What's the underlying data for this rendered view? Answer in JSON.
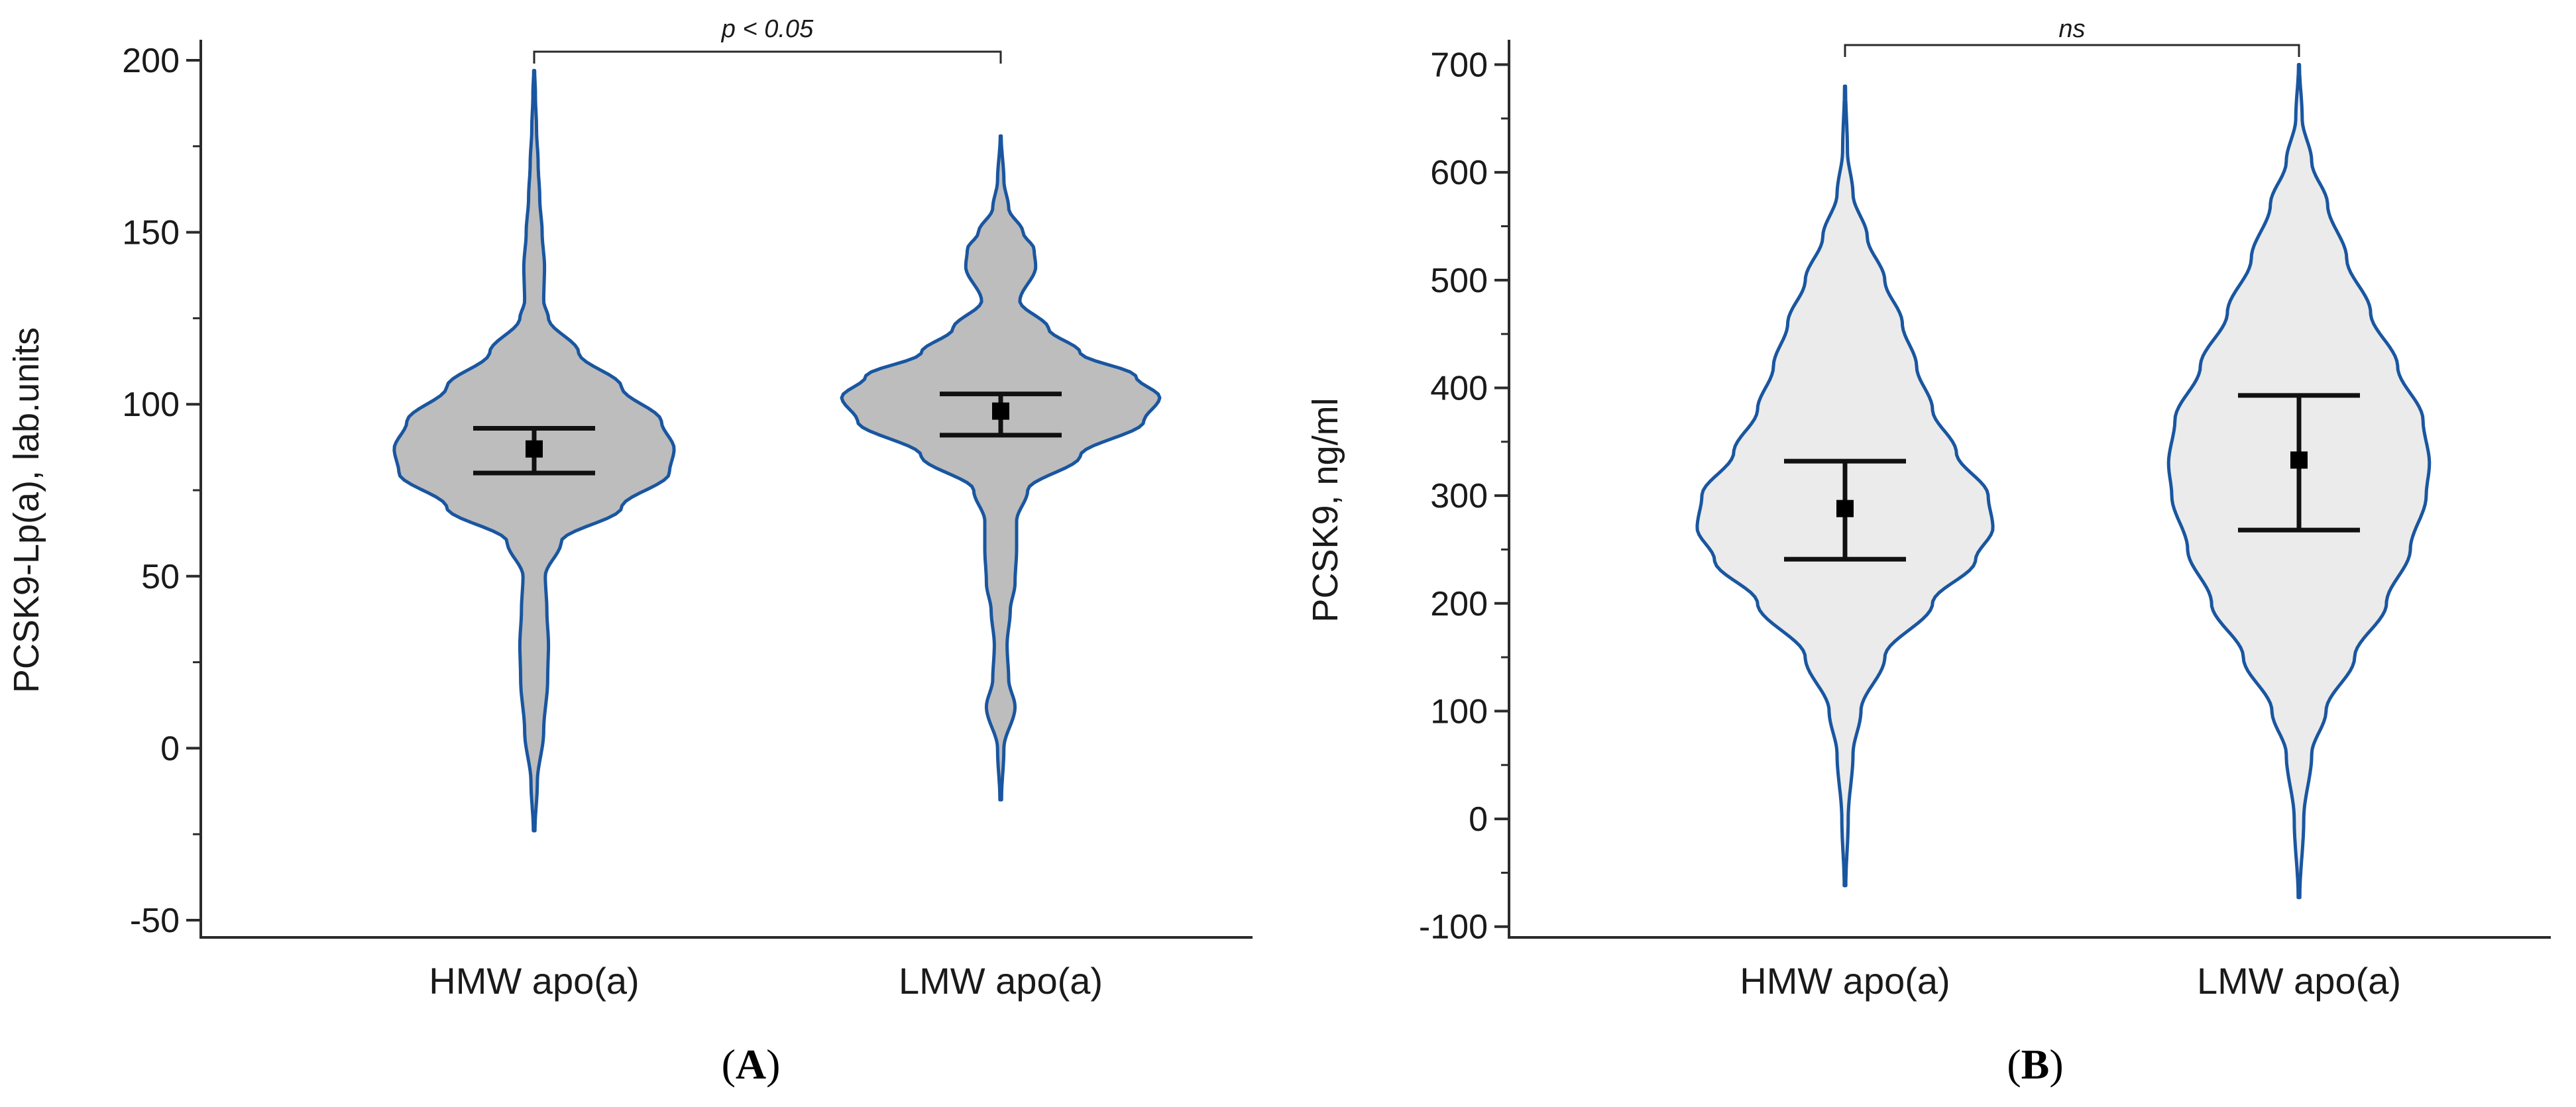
{
  "chart_data": [
    {
      "type": "violin",
      "panel_label": "A",
      "ylabel": "PCSK9-Lp(a), lab.units",
      "ylim": [
        -55,
        205
      ],
      "yticks": [
        -50,
        0,
        50,
        100,
        150,
        200
      ],
      "tick_labels": [
        "-50",
        "0",
        "50",
        "100",
        "150",
        "200"
      ],
      "violin_fill": "#bdbdbd",
      "violin_stroke": "#1a56a0",
      "significance": {
        "text": "p < 0.05",
        "between": [
          0,
          1
        ]
      },
      "series": [
        {
          "name": "HMW apo(a)",
          "mean": 87,
          "ci": [
            80,
            93
          ],
          "range": [
            -24,
            197
          ],
          "density_profile": [
            [
              -24,
              0.005
            ],
            [
              -10,
              0.02
            ],
            [
              5,
              0.06
            ],
            [
              20,
              0.085
            ],
            [
              30,
              0.09
            ],
            [
              40,
              0.08
            ],
            [
              50,
              0.07
            ],
            [
              60,
              0.17
            ],
            [
              70,
              0.55
            ],
            [
              80,
              0.85
            ],
            [
              87,
              0.88
            ],
            [
              95,
              0.8
            ],
            [
              105,
              0.55
            ],
            [
              115,
              0.28
            ],
            [
              125,
              0.09
            ],
            [
              130,
              0.06
            ],
            [
              140,
              0.065
            ],
            [
              150,
              0.05
            ],
            [
              160,
              0.035
            ],
            [
              170,
              0.025
            ],
            [
              180,
              0.015
            ],
            [
              190,
              0.008
            ],
            [
              197,
              0.003
            ]
          ]
        },
        {
          "name": "LMW apo(a)",
          "mean": 98,
          "ci": [
            91,
            103
          ],
          "range": [
            -15,
            178
          ],
          "density_profile": [
            [
              -15,
              0.005
            ],
            [
              0,
              0.02
            ],
            [
              12,
              0.09
            ],
            [
              20,
              0.05
            ],
            [
              30,
              0.04
            ],
            [
              40,
              0.06
            ],
            [
              48,
              0.09
            ],
            [
              58,
              0.1
            ],
            [
              66,
              0.1
            ],
            [
              75,
              0.17
            ],
            [
              85,
              0.5
            ],
            [
              95,
              0.9
            ],
            [
              102,
              1.0
            ],
            [
              108,
              0.85
            ],
            [
              115,
              0.5
            ],
            [
              122,
              0.3
            ],
            [
              130,
              0.12
            ],
            [
              140,
              0.22
            ],
            [
              145,
              0.21
            ],
            [
              150,
              0.14
            ],
            [
              157,
              0.05
            ],
            [
              165,
              0.02
            ],
            [
              178,
              0.003
            ]
          ]
        }
      ]
    },
    {
      "type": "violin",
      "panel_label": "B",
      "ylabel": "PCSK9, ng/ml",
      "ylim": [
        -110,
        720
      ],
      "yticks": [
        -100,
        0,
        100,
        200,
        300,
        400,
        500,
        600,
        700
      ],
      "tick_labels": [
        "-100",
        "0",
        "100",
        "200",
        "300",
        "400",
        "500",
        "600",
        "700"
      ],
      "violin_fill": "#ebebeb",
      "violin_stroke": "#1a56a0",
      "significance": {
        "text": "ns",
        "between": [
          0,
          1
        ]
      },
      "series": [
        {
          "name": "HMW apo(a)",
          "mean": 288,
          "ci": [
            241,
            332
          ],
          "range": [
            -62,
            680
          ],
          "density_profile": [
            [
              -62,
              0.005
            ],
            [
              0,
              0.02
            ],
            [
              60,
              0.05
            ],
            [
              100,
              0.1
            ],
            [
              150,
              0.25
            ],
            [
              200,
              0.55
            ],
            [
              240,
              0.82
            ],
            [
              270,
              0.93
            ],
            [
              300,
              0.9
            ],
            [
              340,
              0.7
            ],
            [
              380,
              0.55
            ],
            [
              420,
              0.45
            ],
            [
              460,
              0.36
            ],
            [
              500,
              0.25
            ],
            [
              540,
              0.14
            ],
            [
              580,
              0.05
            ],
            [
              620,
              0.015
            ],
            [
              680,
              0.003
            ]
          ]
        },
        {
          "name": "LMW apo(a)",
          "mean": 333,
          "ci": [
            268,
            393
          ],
          "range": [
            -73,
            700
          ],
          "density_profile": [
            [
              -73,
              0.005
            ],
            [
              0,
              0.03
            ],
            [
              60,
              0.08
            ],
            [
              100,
              0.17
            ],
            [
              150,
              0.35
            ],
            [
              200,
              0.55
            ],
            [
              250,
              0.7
            ],
            [
              300,
              0.8
            ],
            [
              330,
              0.82
            ],
            [
              370,
              0.78
            ],
            [
              420,
              0.62
            ],
            [
              470,
              0.45
            ],
            [
              520,
              0.3
            ],
            [
              570,
              0.18
            ],
            [
              610,
              0.08
            ],
            [
              650,
              0.02
            ],
            [
              700,
              0.003
            ]
          ]
        }
      ]
    }
  ]
}
